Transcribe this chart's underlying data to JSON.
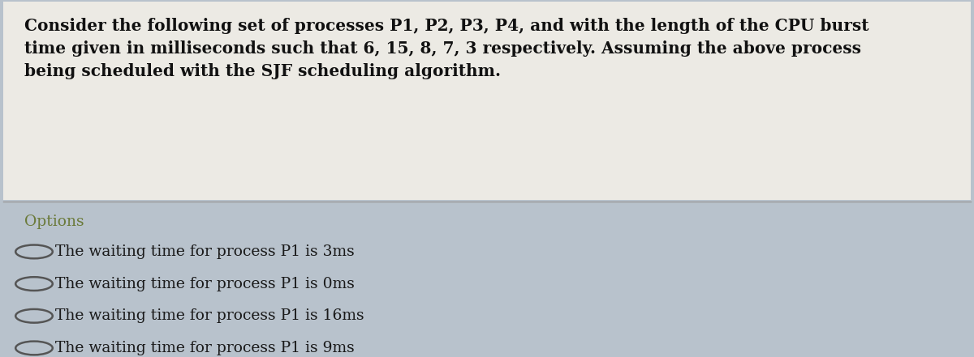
{
  "question_text_line1": "Consider the following set of processes P1, P2, P3, P4, and with the length of the CPU burst",
  "question_text_line2": "time given in milliseconds such that 6, 15, 8, 7, 3 respectively. Assuming the above process",
  "question_text_line3": "being scheduled with the SJF scheduling algorithm.",
  "question_bg": "#eceae4",
  "main_bg": "#b8c2cc",
  "separator_color": "#9a9a9a",
  "options_label": "Options",
  "options_label_color": "#6b7a3a",
  "options": [
    "The waiting time for process P1 is 3ms",
    "The waiting time for process P1 is 0ms",
    "The waiting time for process P1 is 16ms",
    "The waiting time for process P1 is 9ms"
  ],
  "options_text_color": "#1a1a1a",
  "circle_edge_color": "#555555",
  "question_font_size": 14.5,
  "options_font_size": 13.5,
  "options_label_font_size": 13.5,
  "fig_width": 12.0,
  "fig_height": 4.41,
  "dpi": 100
}
